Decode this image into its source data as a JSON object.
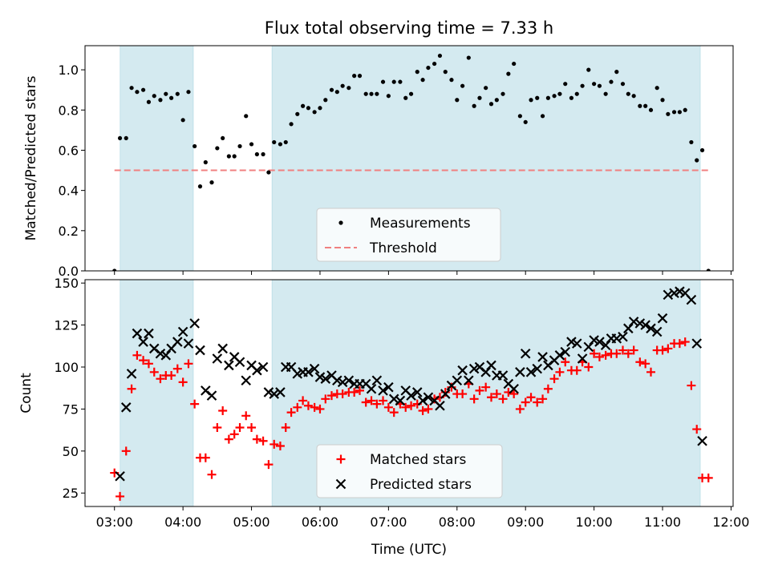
{
  "figure": {
    "title": "Flux total observing time = 7.33 h",
    "xlabel": "Time (UTC)",
    "x_ticks": [
      "03:00",
      "04:00",
      "05:00",
      "06:00",
      "07:00",
      "08:00",
      "09:00",
      "10:00",
      "11:00",
      "12:00"
    ],
    "x_tick_hours": [
      3,
      4,
      5,
      6,
      7,
      8,
      9,
      10,
      11,
      12
    ],
    "xlim": [
      2.57,
      12.03
    ],
    "shade_color": "#d4eaf0",
    "shaded_intervals": [
      [
        3.083,
        4.15
      ],
      [
        5.3,
        11.55
      ]
    ]
  },
  "chart_data": [
    {
      "type": "scatter",
      "ylabel": "Matched/Predicted stars",
      "ylim": [
        0,
        1.12
      ],
      "y_ticks": [
        "0.0",
        "0.2",
        "0.4",
        "0.6",
        "0.8",
        "1.0"
      ],
      "y_tick_values": [
        0,
        0.2,
        0.4,
        0.6,
        0.8,
        1.0
      ],
      "legend": {
        "position": "lower center"
      },
      "threshold": {
        "name": "Threshold",
        "value": 0.5,
        "x_range": [
          3.0,
          11.67
        ],
        "color": "#f08080"
      },
      "series": [
        {
          "name": "Measurements",
          "color": "#000000",
          "marker": "dot",
          "x": [
            3.0,
            3.08,
            3.17,
            3.25,
            3.33,
            3.42,
            3.5,
            3.58,
            3.67,
            3.75,
            3.83,
            3.92,
            4.0,
            4.08,
            4.17,
            4.25,
            4.33,
            4.42,
            4.5,
            4.58,
            4.67,
            4.75,
            4.83,
            4.92,
            5.0,
            5.08,
            5.17,
            5.25,
            5.33,
            5.42,
            5.5,
            5.58,
            5.67,
            5.75,
            5.83,
            5.92,
            6.0,
            6.08,
            6.17,
            6.25,
            6.33,
            6.42,
            6.5,
            6.58,
            6.67,
            6.75,
            6.83,
            6.92,
            7.0,
            7.08,
            7.17,
            7.25,
            7.33,
            7.42,
            7.5,
            7.58,
            7.67,
            7.75,
            7.83,
            7.92,
            8.0,
            8.08,
            8.17,
            8.25,
            8.33,
            8.42,
            8.5,
            8.58,
            8.67,
            8.75,
            8.83,
            8.92,
            9.0,
            9.08,
            9.17,
            9.25,
            9.33,
            9.42,
            9.5,
            9.58,
            9.67,
            9.75,
            9.83,
            9.92,
            10.0,
            10.08,
            10.17,
            10.25,
            10.33,
            10.42,
            10.5,
            10.58,
            10.67,
            10.75,
            10.83,
            10.92,
            11.0,
            11.08,
            11.17,
            11.25,
            11.33,
            11.42,
            11.5,
            11.58,
            11.67
          ],
          "y": [
            0.0,
            0.66,
            0.66,
            0.91,
            0.89,
            0.9,
            0.84,
            0.87,
            0.85,
            0.88,
            0.86,
            0.88,
            0.75,
            0.89,
            0.62,
            0.42,
            0.54,
            0.44,
            0.61,
            0.66,
            0.57,
            0.57,
            0.62,
            0.77,
            0.63,
            0.58,
            0.58,
            0.49,
            0.64,
            0.63,
            0.64,
            0.73,
            0.78,
            0.82,
            0.81,
            0.79,
            0.81,
            0.85,
            0.9,
            0.89,
            0.92,
            0.91,
            0.97,
            0.97,
            0.88,
            0.88,
            0.88,
            0.94,
            0.87,
            0.94,
            0.94,
            0.86,
            0.88,
            0.99,
            0.95,
            1.01,
            1.03,
            1.07,
            0.99,
            0.95,
            0.85,
            0.92,
            1.06,
            0.82,
            0.86,
            0.91,
            0.83,
            0.85,
            0.88,
            0.98,
            1.03,
            0.77,
            0.74,
            0.85,
            0.86,
            0.77,
            0.86,
            0.87,
            0.88,
            0.93,
            0.86,
            0.88,
            0.92,
            1.0,
            0.93,
            0.92,
            0.88,
            0.94,
            0.99,
            0.93,
            0.88,
            0.87,
            0.82,
            0.82,
            0.8,
            0.91,
            0.85,
            0.78,
            0.79,
            0.79,
            0.8,
            0.64,
            0.55,
            0.6,
            0.0
          ]
        }
      ]
    },
    {
      "type": "scatter",
      "ylabel": "Count",
      "ylim": [
        17,
        152
      ],
      "y_ticks": [
        "25",
        "50",
        "75",
        "100",
        "125",
        "150"
      ],
      "y_tick_values": [
        25,
        50,
        75,
        100,
        125,
        150
      ],
      "legend": {
        "position": "lower center"
      },
      "series": [
        {
          "name": "Matched stars",
          "color": "#ff0000",
          "marker": "plus",
          "x": [
            3.0,
            3.08,
            3.17,
            3.25,
            3.33,
            3.42,
            3.5,
            3.58,
            3.67,
            3.75,
            3.83,
            3.92,
            4.0,
            4.08,
            4.17,
            4.25,
            4.33,
            4.42,
            4.5,
            4.58,
            4.67,
            4.75,
            4.83,
            4.92,
            5.0,
            5.08,
            5.17,
            5.25,
            5.33,
            5.42,
            5.5,
            5.58,
            5.67,
            5.75,
            5.83,
            5.92,
            6.0,
            6.08,
            6.17,
            6.25,
            6.33,
            6.42,
            6.5,
            6.58,
            6.67,
            6.75,
            6.83,
            6.92,
            7.0,
            7.08,
            7.17,
            7.25,
            7.33,
            7.42,
            7.5,
            7.58,
            7.67,
            7.75,
            7.83,
            7.92,
            8.0,
            8.08,
            8.17,
            8.25,
            8.33,
            8.42,
            8.5,
            8.58,
            8.67,
            8.75,
            8.83,
            8.92,
            9.0,
            9.08,
            9.17,
            9.25,
            9.33,
            9.42,
            9.5,
            9.58,
            9.67,
            9.75,
            9.83,
            9.92,
            10.0,
            10.08,
            10.17,
            10.25,
            10.33,
            10.42,
            10.5,
            10.58,
            10.67,
            10.75,
            10.83,
            10.92,
            11.0,
            11.08,
            11.17,
            11.25,
            11.33,
            11.42,
            11.5,
            11.58,
            11.67
          ],
          "y": [
            37,
            23,
            50,
            87,
            107,
            104,
            102,
            97,
            93,
            95,
            95,
            99,
            91,
            102,
            78,
            46,
            46,
            36,
            64,
            74,
            57,
            60,
            64,
            71,
            64,
            57,
            56,
            42,
            54,
            53,
            64,
            73,
            76,
            80,
            77,
            76,
            75,
            81,
            83,
            84,
            84,
            85,
            85,
            86,
            79,
            80,
            78,
            80,
            76,
            73,
            78,
            76,
            77,
            78,
            74,
            75,
            81,
            82,
            85,
            88,
            84,
            84,
            90,
            81,
            86,
            88,
            82,
            84,
            81,
            85,
            84,
            75,
            79,
            82,
            79,
            81,
            87,
            93,
            97,
            103,
            98,
            98,
            103,
            100,
            108,
            106,
            107,
            108,
            108,
            110,
            108,
            110,
            103,
            102,
            97,
            110,
            110,
            111,
            114,
            114,
            115,
            89,
            63,
            34,
            34
          ]
        },
        {
          "name": "Predicted stars",
          "color": "#000000",
          "marker": "x",
          "x": [
            3.08,
            3.17,
            3.25,
            3.33,
            3.42,
            3.5,
            3.58,
            3.67,
            3.75,
            3.83,
            3.92,
            4.0,
            4.08,
            4.17,
            4.25,
            4.33,
            4.42,
            4.5,
            4.58,
            4.67,
            4.75,
            4.83,
            4.92,
            5.0,
            5.08,
            5.17,
            5.25,
            5.33,
            5.42,
            5.5,
            5.58,
            5.67,
            5.75,
            5.83,
            5.92,
            6.0,
            6.08,
            6.17,
            6.25,
            6.33,
            6.42,
            6.5,
            6.58,
            6.67,
            6.75,
            6.83,
            6.92,
            7.0,
            7.08,
            7.17,
            7.25,
            7.33,
            7.42,
            7.5,
            7.58,
            7.67,
            7.75,
            7.83,
            7.92,
            8.0,
            8.08,
            8.17,
            8.25,
            8.33,
            8.42,
            8.5,
            8.58,
            8.67,
            8.75,
            8.83,
            8.92,
            9.0,
            9.08,
            9.17,
            9.25,
            9.33,
            9.42,
            9.5,
            9.58,
            9.67,
            9.75,
            9.83,
            9.92,
            10.0,
            10.08,
            10.17,
            10.25,
            10.33,
            10.42,
            10.5,
            10.58,
            10.67,
            10.75,
            10.83,
            10.92,
            11.0,
            11.08,
            11.17,
            11.25,
            11.33,
            11.42,
            11.5,
            11.58
          ],
          "y": [
            35,
            76,
            96,
            120,
            115,
            120,
            111,
            108,
            107,
            111,
            115,
            121,
            114,
            126,
            110,
            86,
            83,
            105,
            111,
            101,
            106,
            103,
            92,
            101,
            98,
            100,
            85,
            84,
            85,
            100,
            100,
            96,
            97,
            97,
            99,
            94,
            93,
            95,
            92,
            91,
            92,
            90,
            90,
            90,
            87,
            92,
            86,
            88,
            81,
            80,
            86,
            83,
            85,
            80,
            82,
            80,
            77,
            84,
            89,
            92,
            98,
            92,
            99,
            100,
            97,
            101,
            95,
            95,
            90,
            87,
            97,
            108,
            97,
            99,
            106,
            101,
            104,
            107,
            109,
            115,
            114,
            105,
            112,
            116,
            115,
            113,
            117,
            117,
            118,
            123,
            127,
            126,
            125,
            123,
            121,
            129,
            143,
            144,
            145,
            144,
            140,
            114,
            56
          ]
        }
      ]
    }
  ]
}
